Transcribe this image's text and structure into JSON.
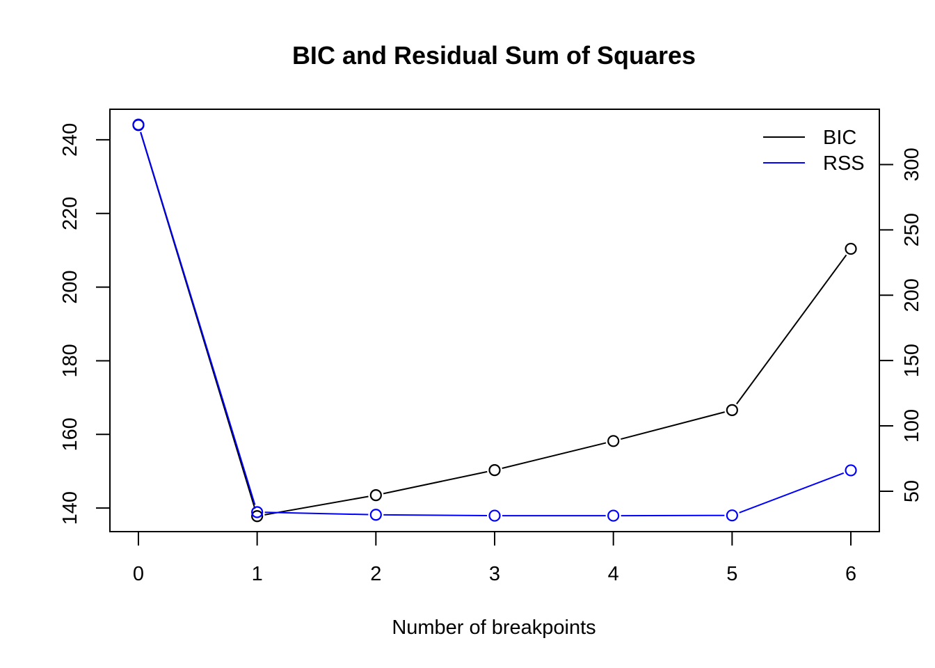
{
  "chart_data": {
    "type": "line",
    "title": "BIC and Residual Sum of Squares",
    "xlabel": "Number of breakpoints",
    "x": [
      0,
      1,
      2,
      3,
      4,
      5,
      6
    ],
    "xlim": [
      -0.24,
      6.24
    ],
    "x_ticks": [
      "0",
      "1",
      "2",
      "3",
      "4",
      "5",
      "6"
    ],
    "series": [
      {
        "name": "BIC",
        "axis": "left",
        "color": "#000000",
        "values": [
          244.0,
          137.8,
          143.5,
          150.3,
          158.2,
          166.6,
          210.4
        ]
      },
      {
        "name": "RSS",
        "axis": "right",
        "color": "#0000ff",
        "values": [
          330.5,
          34.0,
          32.0,
          31.3,
          31.3,
          31.5,
          66.0
        ]
      }
    ],
    "y_left": {
      "range": [
        133.6,
        248.3
      ],
      "ticks": [
        "140",
        "160",
        "180",
        "200",
        "220",
        "240"
      ]
    },
    "y_right": {
      "range": [
        19.1,
        342.3
      ],
      "ticks": [
        "50",
        "100",
        "150",
        "200",
        "250",
        "300"
      ]
    },
    "legend": {
      "position": "top-right",
      "entries": [
        "BIC",
        "RSS"
      ]
    },
    "grid": false,
    "markers": "open-circle"
  }
}
